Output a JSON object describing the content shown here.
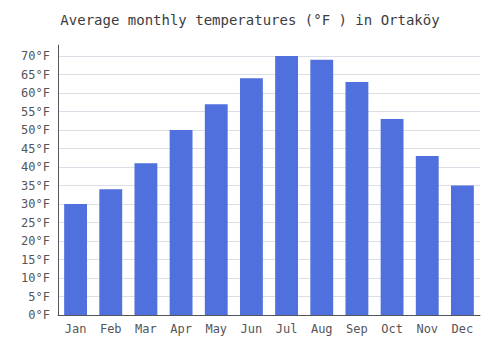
{
  "chart_data": {
    "type": "bar",
    "title": "Average monthly temperatures (°F ) in Ortaköy",
    "categories": [
      "Jan",
      "Feb",
      "Mar",
      "Apr",
      "May",
      "Jun",
      "Jul",
      "Aug",
      "Sep",
      "Oct",
      "Nov",
      "Dec"
    ],
    "values": [
      30,
      34,
      41,
      50,
      57,
      64,
      70,
      69,
      63,
      53,
      43,
      35
    ],
    "ylim": [
      0,
      73
    ],
    "yticks": [
      {
        "value": 0,
        "label": "0°F"
      },
      {
        "value": 5,
        "label": "5°F"
      },
      {
        "value": 10,
        "label": "10°F"
      },
      {
        "value": 15,
        "label": "15°F"
      },
      {
        "value": 20,
        "label": "20°F"
      },
      {
        "value": 25,
        "label": "25°F"
      },
      {
        "value": 30,
        "label": "30°F"
      },
      {
        "value": 35,
        "label": "35°F"
      },
      {
        "value": 40,
        "label": "40°F"
      },
      {
        "value": 45,
        "label": "45°F"
      },
      {
        "value": 50,
        "label": "50°F"
      },
      {
        "value": 55,
        "label": "55°F"
      },
      {
        "value": 60,
        "label": "60°F"
      },
      {
        "value": 65,
        "label": "65°F"
      },
      {
        "value": 70,
        "label": "70°F"
      }
    ],
    "grid": true
  }
}
